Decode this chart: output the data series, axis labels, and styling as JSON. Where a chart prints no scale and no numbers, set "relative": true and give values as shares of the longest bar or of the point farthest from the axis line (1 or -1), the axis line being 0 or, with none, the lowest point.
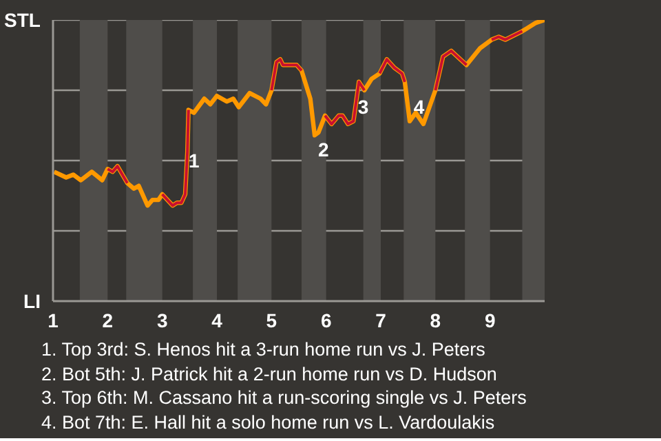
{
  "chart_data": {
    "type": "line",
    "x": [
      1.02,
      1.24,
      1.37,
      1.51,
      1.71,
      1.9,
      2.0,
      2.09,
      2.18,
      2.36,
      2.48,
      2.57,
      2.73,
      2.82,
      2.93,
      3.0,
      3.19,
      3.27,
      3.35,
      3.42,
      3.46,
      3.48,
      3.58,
      3.77,
      3.88,
      4.0,
      4.18,
      4.3,
      4.4,
      4.6,
      4.8,
      4.9,
      5.0,
      5.09,
      5.16,
      5.21,
      5.46,
      5.55,
      5.71,
      5.79,
      5.86,
      5.98,
      6.1,
      6.23,
      6.3,
      6.4,
      6.5,
      6.6,
      6.7,
      6.83,
      6.98,
      7.11,
      7.25,
      7.39,
      7.44,
      7.53,
      7.64,
      7.78,
      8.0,
      8.14,
      8.29,
      8.57,
      8.82,
      9.03,
      9.16,
      9.28,
      9.59,
      9.84,
      10.0
    ],
    "relative": true,
    "series": [
      {
        "color": "#ff9900",
        "values": [
          0.46,
          0.44,
          0.45,
          0.43,
          0.46,
          0.43,
          0.47,
          0.46,
          0.48,
          0.42,
          0.4,
          0.41,
          0.34,
          0.36,
          0.36,
          0.38,
          0.34,
          0.35,
          0.35,
          0.38,
          0.53,
          0.68,
          0.67,
          0.72,
          0.7,
          0.73,
          0.71,
          0.72,
          0.69,
          0.74,
          0.72,
          0.7,
          0.75,
          0.85,
          0.86,
          0.84,
          0.84,
          0.82,
          0.72,
          0.59,
          0.6,
          0.66,
          0.63,
          0.66,
          0.66,
          0.63,
          0.64,
          0.78,
          0.75,
          0.79,
          0.81,
          0.86,
          0.83,
          0.81,
          0.78,
          0.64,
          0.67,
          0.63,
          0.75,
          0.87,
          0.89,
          0.84,
          0.9,
          0.93,
          0.94,
          0.93,
          0.96,
          0.99,
          1.0
        ]
      },
      {
        "color": "#c8102e",
        "values": [
          null,
          null,
          null,
          null,
          null,
          null,
          0.47,
          0.46,
          0.48,
          0.42,
          null,
          null,
          null,
          null,
          null,
          0.38,
          0.34,
          0.35,
          0.35,
          0.38,
          0.53,
          0.68,
          null,
          null,
          null,
          null,
          null,
          null,
          null,
          null,
          null,
          null,
          0.75,
          0.85,
          0.86,
          0.84,
          0.84,
          0.82,
          null,
          null,
          null,
          0.66,
          0.63,
          0.66,
          0.66,
          0.63,
          0.64,
          0.78,
          0.75,
          null,
          0.81,
          0.86,
          0.83,
          0.81,
          0.78,
          null,
          null,
          null,
          0.75,
          0.87,
          0.89,
          0.84,
          null,
          0.93,
          0.94,
          0.93,
          0.96,
          null,
          null
        ]
      }
    ],
    "xlim": [
      1,
      10
    ],
    "xticks": [
      1,
      2,
      3,
      4,
      5,
      6,
      7,
      8,
      9
    ],
    "grid": "y",
    "bands": [
      {
        "axis": "x",
        "from": 1.49,
        "to": 2.0,
        "color": "#4f4d4a"
      },
      {
        "axis": "x",
        "from": 2.34,
        "to": 3.0,
        "color": "#4f4d4a"
      },
      {
        "axis": "x",
        "from": 3.56,
        "to": 4.0,
        "color": "#4f4d4a"
      },
      {
        "axis": "x",
        "from": 4.38,
        "to": 5.0,
        "color": "#4f4d4a"
      },
      {
        "axis": "x",
        "from": 5.55,
        "to": 6.0,
        "color": "#4f4d4a"
      },
      {
        "axis": "x",
        "from": 6.68,
        "to": 7.0,
        "color": "#4f4d4a"
      },
      {
        "axis": "x",
        "from": 7.42,
        "to": 8.0,
        "color": "#4f4d4a"
      },
      {
        "axis": "x",
        "from": 8.54,
        "to": 9.0,
        "color": "#4f4d4a"
      },
      {
        "axis": "x",
        "from": 9.59,
        "to": 10.0,
        "color": "#4f4d4a"
      }
    ],
    "annotations": [
      "STL",
      "LI",
      {
        "text": "1",
        "x": 3.58,
        "y": 0.5
      },
      {
        "text": "2",
        "x": 5.95,
        "y": 0.54
      },
      {
        "text": "3",
        "x": 6.68,
        "y": 0.69
      },
      {
        "text": "4",
        "x": 7.7,
        "y": 0.69
      },
      "1. Top 3rd: S. Henos hit a 3-run home run vs J. Peters",
      "2. Bot 5th: J. Patrick hit a 2-run home run vs D. Hudson",
      "3. Top 6th: M. Cassano hit a run-scoring single vs J. Peters",
      "4. Bot 7th: E. Hall hit a solo home run vs L. Vardoulakis"
    ]
  }
}
